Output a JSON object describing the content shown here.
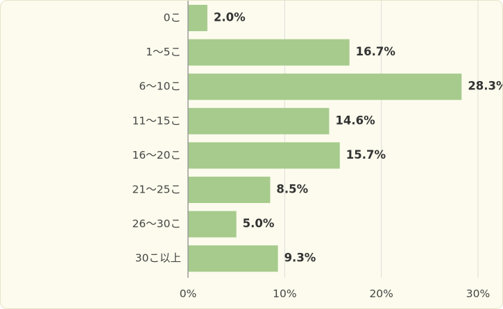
{
  "chart_data": {
    "type": "bar",
    "orientation": "horizontal",
    "categories": [
      "0こ",
      "1〜5こ",
      "6〜10こ",
      "11〜15こ",
      "16〜20こ",
      "21〜25こ",
      "26〜30こ",
      "30こ以上"
    ],
    "values": [
      2.0,
      16.7,
      28.3,
      14.6,
      15.7,
      8.5,
      5.0,
      9.3
    ],
    "data_labels": [
      "2.0%",
      "16.7%",
      "28.3%",
      "14.6%",
      "15.7%",
      "8.5%",
      "5.0%",
      "9.3%"
    ],
    "x_ticks": [
      "0%",
      "10%",
      "20%",
      "30%"
    ],
    "x_tick_values": [
      0,
      10,
      20,
      30
    ],
    "xlim": [
      0,
      30
    ],
    "grid": true,
    "title": "",
    "xlabel": "",
    "ylabel": "",
    "colors": {
      "bar": "#a6cb8c",
      "background": "#fcfbed",
      "grid": "#dddddd",
      "axis": "#999999"
    }
  }
}
